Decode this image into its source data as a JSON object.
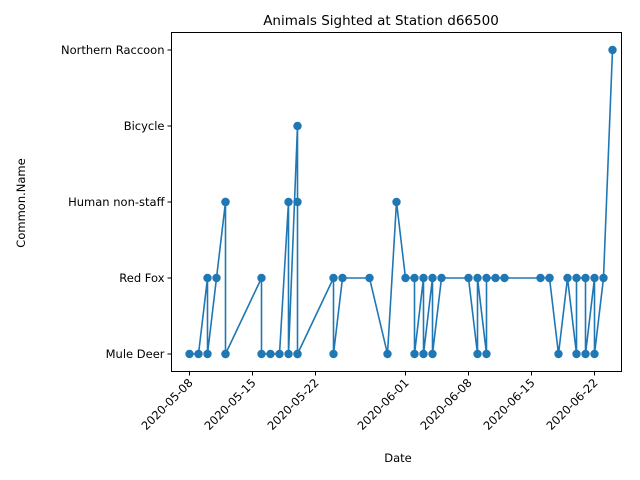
{
  "chart_data": {
    "type": "line",
    "title": "Animals Sighted at Station d66500",
    "xlabel": "Date",
    "ylabel": "Common.Name",
    "categories": [
      "Mule Deer",
      "Red Fox",
      "Human non-staff",
      "Bicycle",
      "Northern Raccoon"
    ],
    "xlim": [
      "2020-05-06",
      "2020-06-25"
    ],
    "x_ticks": [
      "2020-05-08",
      "2020-05-15",
      "2020-05-22",
      "2020-06-01",
      "2020-06-08",
      "2020-06-15",
      "2020-06-22"
    ],
    "marker": "circle",
    "grid": false,
    "color": "#1f77b4",
    "series": [
      {
        "x": [
          "2020-05-08",
          "2020-05-09",
          "2020-05-10",
          "2020-05-10",
          "2020-05-11",
          "2020-05-12",
          "2020-05-12",
          "2020-05-12",
          "2020-05-12",
          "2020-05-16",
          "2020-05-16",
          "2020-05-17",
          "2020-05-18",
          "2020-05-19",
          "2020-05-19",
          "2020-05-20",
          "2020-05-20",
          "2020-05-20",
          "2020-05-20",
          "2020-05-24",
          "2020-05-24",
          "2020-05-25",
          "2020-05-28",
          "2020-05-30",
          "2020-05-31",
          "2020-06-01",
          "2020-06-02",
          "2020-06-02",
          "2020-06-03",
          "2020-06-03",
          "2020-06-04",
          "2020-06-04",
          "2020-06-05",
          "2020-06-08",
          "2020-06-09",
          "2020-06-09",
          "2020-06-10",
          "2020-06-10",
          "2020-06-11",
          "2020-06-12",
          "2020-06-16",
          "2020-06-17",
          "2020-06-17",
          "2020-06-18",
          "2020-06-19",
          "2020-06-20",
          "2020-06-20",
          "2020-06-21",
          "2020-06-21",
          "2020-06-22",
          "2020-06-22",
          "2020-06-23",
          "2020-06-24"
        ],
        "y": [
          "Mule Deer",
          "Mule Deer",
          "Red Fox",
          "Mule Deer",
          "Red Fox",
          "Human non-staff",
          "Mule Deer",
          "Human non-staff",
          "Mule Deer",
          "Red Fox",
          "Mule Deer",
          "Mule Deer",
          "Mule Deer",
          "Human non-staff",
          "Mule Deer",
          "Bicycle",
          "Mule Deer",
          "Human non-staff",
          "Mule Deer",
          "Red Fox",
          "Mule Deer",
          "Red Fox",
          "Red Fox",
          "Mule Deer",
          "Human non-staff",
          "Red Fox",
          "Red Fox",
          "Mule Deer",
          "Red Fox",
          "Mule Deer",
          "Red Fox",
          "Mule Deer",
          "Red Fox",
          "Red Fox",
          "Mule Deer",
          "Red Fox",
          "Mule Deer",
          "Red Fox",
          "Red Fox",
          "Red Fox",
          "Red Fox",
          "Red Fox",
          "Red Fox",
          "Mule Deer",
          "Red Fox",
          "Mule Deer",
          "Red Fox",
          "Red Fox",
          "Mule Deer",
          "Red Fox",
          "Mule Deer",
          "Red Fox",
          "Northern Raccoon"
        ]
      }
    ]
  }
}
